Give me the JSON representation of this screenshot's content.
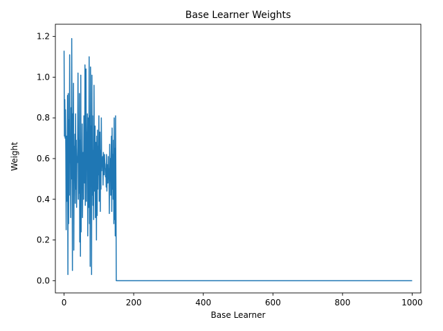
{
  "chart_data": {
    "type": "line",
    "title": "Base Learner Weights",
    "xlabel": "Base Learner",
    "ylabel": "Weight",
    "xlim": [
      -25,
      1025
    ],
    "ylim": [
      -0.06,
      1.26
    ],
    "xticks": [
      0,
      200,
      400,
      600,
      800,
      1000
    ],
    "yticks": [
      0.0,
      0.2,
      0.4,
      0.6,
      0.8,
      1.0,
      1.2
    ],
    "xtick_labels": [
      "0",
      "200",
      "400",
      "600",
      "800",
      "1000"
    ],
    "ytick_labels": [
      "0.0",
      "0.2",
      "0.4",
      "0.6",
      "0.8",
      "1.0",
      "1.2"
    ],
    "grid": false,
    "colors": {
      "line": "#1f77b4",
      "axes": "#000000",
      "background": "#ffffff"
    },
    "series": [
      {
        "x": [
          0,
          1,
          2,
          3,
          4,
          5,
          6,
          7,
          8,
          9,
          10,
          11,
          12,
          13,
          14,
          15,
          16,
          17,
          18,
          19,
          20,
          21,
          22,
          23,
          24,
          25,
          26,
          27,
          28,
          29,
          30,
          31,
          32,
          33,
          34,
          35,
          36,
          37,
          38,
          39,
          40,
          41,
          42,
          43,
          44,
          45,
          46,
          47,
          48,
          49,
          50,
          51,
          52,
          53,
          54,
          55,
          56,
          57,
          58,
          59,
          60,
          61,
          62,
          63,
          64,
          65,
          66,
          67,
          68,
          69,
          70,
          71,
          72,
          73,
          74,
          75,
          76,
          77,
          78,
          79,
          80,
          81,
          82,
          83,
          84,
          85,
          86,
          87,
          88,
          89,
          90,
          91,
          92,
          93,
          94,
          95,
          96,
          97,
          98,
          99,
          100,
          101,
          102,
          103,
          104,
          105,
          106,
          107,
          108,
          109,
          110,
          111,
          112,
          113,
          114,
          115,
          116,
          117,
          118,
          119,
          120,
          121,
          122,
          123,
          124,
          125,
          126,
          127,
          128,
          129,
          130,
          131,
          132,
          133,
          134,
          135,
          136,
          137,
          138,
          139,
          140,
          141,
          142,
          143,
          144,
          145,
          146,
          147,
          148,
          149,
          150,
          151,
          1000
        ],
        "y": [
          1.13,
          0.71,
          0.89,
          0.7,
          0.84,
          0.63,
          0.25,
          0.71,
          0.39,
          0.6,
          0.91,
          0.03,
          0.92,
          0.28,
          0.79,
          0.42,
          1.11,
          0.58,
          0.69,
          0.31,
          0.85,
          0.5,
          1.19,
          0.62,
          0.05,
          0.82,
          0.6,
          0.97,
          0.15,
          0.66,
          0.52,
          0.72,
          0.38,
          0.82,
          0.45,
          0.69,
          0.36,
          0.61,
          0.58,
          0.66,
          1.02,
          0.4,
          0.7,
          0.43,
          0.92,
          0.19,
          0.69,
          0.12,
          1.01,
          0.24,
          0.55,
          0.49,
          0.77,
          0.31,
          0.56,
          0.63,
          0.4,
          0.81,
          0.65,
          0.48,
          1.06,
          0.37,
          0.56,
          1.04,
          0.39,
          0.73,
          0.62,
          0.82,
          0.22,
          0.54,
          0.8,
          0.36,
          1.1,
          0.28,
          0.81,
          0.07,
          1.05,
          0.47,
          0.76,
          0.03,
          1.01,
          0.42,
          0.81,
          0.37,
          0.64,
          0.3,
          0.96,
          0.53,
          0.44,
          0.76,
          0.31,
          0.68,
          0.58,
          0.2,
          0.71,
          0.32,
          0.74,
          0.45,
          0.66,
          0.52,
          0.81,
          0.39,
          0.6,
          0.73,
          0.34,
          0.64,
          0.45,
          0.8,
          0.54,
          0.6,
          0.58,
          0.61,
          0.47,
          0.63,
          0.55,
          0.52,
          0.62,
          0.58,
          0.57,
          0.51,
          0.55,
          0.46,
          0.62,
          0.44,
          0.53,
          0.57,
          0.48,
          0.61,
          0.5,
          0.55,
          0.33,
          0.67,
          0.49,
          0.6,
          0.42,
          0.58,
          0.71,
          0.34,
          0.75,
          0.45,
          0.62,
          0.4,
          0.69,
          0.28,
          0.8,
          0.3,
          0.65,
          0.22,
          0.81,
          0.44,
          0.0,
          0.0,
          0.0
        ]
      }
    ]
  }
}
